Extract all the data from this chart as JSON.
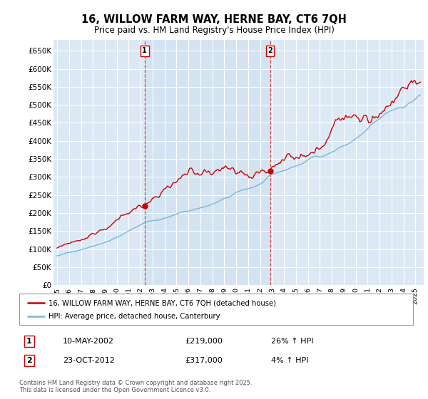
{
  "title": "16, WILLOW FARM WAY, HERNE BAY, CT6 7QH",
  "subtitle": "Price paid vs. HM Land Registry's House Price Index (HPI)",
  "ylabel_ticks": [
    "£0",
    "£50K",
    "£100K",
    "£150K",
    "£200K",
    "£250K",
    "£300K",
    "£350K",
    "£400K",
    "£450K",
    "£500K",
    "£550K",
    "£600K",
    "£650K"
  ],
  "ytick_values": [
    0,
    50000,
    100000,
    150000,
    200000,
    250000,
    300000,
    350000,
    400000,
    450000,
    500000,
    550000,
    600000,
    650000
  ],
  "hpi_color": "#7ab5d8",
  "price_color": "#cc0000",
  "bg_color": "#dce9f5",
  "bg_shade_color": "#cddff0",
  "grid_color": "#ffffff",
  "purchase1_year": 2002.36,
  "purchase1_price": 219000,
  "purchase1_label": "1",
  "purchase2_year": 2012.8,
  "purchase2_price": 317000,
  "purchase2_label": "2",
  "legend_line1": "16, WILLOW FARM WAY, HERNE BAY, CT6 7QH (detached house)",
  "legend_line2": "HPI: Average price, detached house, Canterbury",
  "annotation1_date": "10-MAY-2002",
  "annotation1_price": "£219,000",
  "annotation1_hpi": "26% ↑ HPI",
  "annotation2_date": "23-OCT-2012",
  "annotation2_price": "£317,000",
  "annotation2_hpi": "4% ↑ HPI",
  "footer": "Contains HM Land Registry data © Crown copyright and database right 2025.\nThis data is licensed under the Open Government Licence v3.0.",
  "xstart": 1995,
  "xend": 2025,
  "ymin": 0,
  "ymax": 680000
}
